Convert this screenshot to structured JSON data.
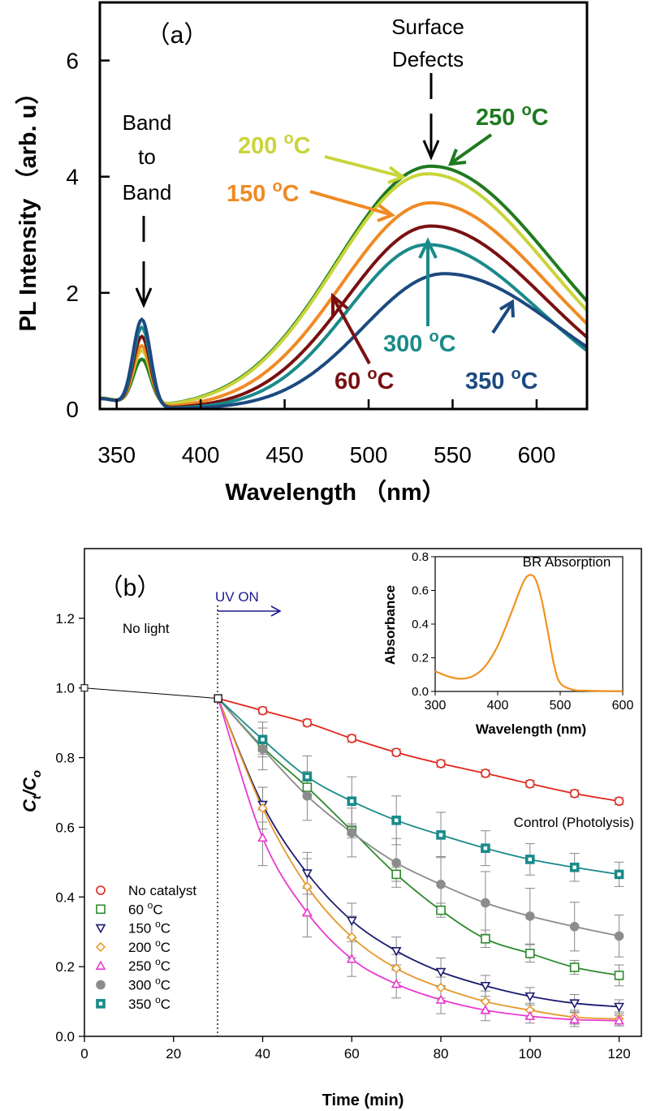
{
  "chart_data": [
    {
      "type": "line",
      "panel_label": "（a）",
      "xlabel": "Wavelength （nm）",
      "ylabel": "PL Intensity （arb. u）",
      "xlim": [
        340,
        630
      ],
      "ylim": [
        0,
        7
      ],
      "xticks": [
        350,
        400,
        450,
        500,
        550,
        600
      ],
      "yticks": [
        0,
        2,
        4,
        6
      ],
      "annotations": {
        "band_to_band": [
          "Band",
          "to",
          "Band"
        ],
        "surface_defects": [
          "Surface",
          "Defects"
        ]
      },
      "series": [
        {
          "name": "60 °C",
          "label_main": "60 ",
          "label_sup": "o",
          "label_end": "C",
          "color": "#7a1010",
          "uv_peak": 1.22,
          "vis_peak": 3.15,
          "vis_center": 537,
          "sigma_left": 50,
          "sigma_right": 68
        },
        {
          "name": "150 °C",
          "label_main": "150 ",
          "label_sup": "o",
          "label_end": "C",
          "color": "#f08a24",
          "uv_peak": 1.05,
          "vis_peak": 3.55,
          "vis_center": 537,
          "sigma_left": 53,
          "sigma_right": 70
        },
        {
          "name": "200 °C",
          "label_main": "200 ",
          "label_sup": "o",
          "label_end": "C",
          "color": "#c9d43a",
          "uv_peak": 0.95,
          "vis_peak": 4.05,
          "vis_center": 535,
          "sigma_left": 55,
          "sigma_right": 72
        },
        {
          "name": "250 °C",
          "label_main": "250 ",
          "label_sup": "o",
          "label_end": "C",
          "color": "#1f7a1f",
          "uv_peak": 0.8,
          "vis_peak": 4.18,
          "vis_center": 537,
          "sigma_left": 56,
          "sigma_right": 73
        },
        {
          "name": "300 °C",
          "label_main": "300 ",
          "label_sup": "o",
          "label_end": "C",
          "color": "#1a8a8a",
          "uv_peak": 1.38,
          "vis_peak": 2.83,
          "vis_center": 535,
          "sigma_left": 47,
          "sigma_right": 66
        },
        {
          "name": "350 °C",
          "label_main": "350 ",
          "label_sup": "o",
          "label_end": "C",
          "color": "#1c4a80",
          "uv_peak": 1.52,
          "vis_peak": 2.33,
          "vis_center": 545,
          "sigma_left": 48,
          "sigma_right": 68
        }
      ]
    },
    {
      "type": "scatter",
      "panel_label": "（b）",
      "xlabel": "Time (min)",
      "ylabel_main": "C",
      "ylabel_sub1": "t",
      "ylabel_slash": "/C",
      "ylabel_sub2": "o",
      "xlim": [
        0,
        125
      ],
      "ylim": [
        0,
        1.4
      ],
      "xticks": [
        0,
        20,
        40,
        60,
        80,
        100,
        120
      ],
      "yticks": [
        0.0,
        0.2,
        0.4,
        0.6,
        0.8,
        1.0,
        1.2
      ],
      "annotations": {
        "no_light": "No light",
        "uv_on": "UV ON",
        "control": "Control (Photolysis)"
      },
      "dark_points": {
        "x": [
          0,
          30
        ],
        "y": [
          1.0,
          0.97
        ]
      },
      "x": [
        30,
        40,
        50,
        60,
        70,
        80,
        90,
        100,
        110,
        120
      ],
      "series": [
        {
          "name": "No catalyst",
          "marker": "circle-open",
          "color": "#e0251b",
          "values": [
            0.97,
            0.935,
            0.9,
            0.855,
            0.815,
            0.783,
            0.755,
            0.725,
            0.697,
            0.675
          ],
          "errors": [
            0,
            0.01,
            0.01,
            0.01,
            0.01,
            0.01,
            0.01,
            0.01,
            0.01,
            0.01
          ]
        },
        {
          "name": "60 °C",
          "marker": "square-open",
          "color": "#2d8a2d",
          "values": [
            0.97,
            0.83,
            0.715,
            0.59,
            0.465,
            0.362,
            0.28,
            0.238,
            0.198,
            0.175
          ],
          "errors": [
            0,
            0.02,
            0.02,
            0.02,
            0.02,
            0.02,
            0.025,
            0.025,
            0.02,
            0.03
          ]
        },
        {
          "name": "150 °C",
          "marker": "triangle-down-open",
          "color": "#1a1a6e",
          "values": [
            0.97,
            0.665,
            0.468,
            0.332,
            0.245,
            0.185,
            0.145,
            0.115,
            0.095,
            0.085
          ],
          "errors": [
            0,
            0.05,
            0.06,
            0.05,
            0.04,
            0.04,
            0.03,
            0.025,
            0.025,
            0.02
          ]
        },
        {
          "name": "200 °C",
          "marker": "diamond-open",
          "color": "#e69a2e",
          "values": [
            0.97,
            0.655,
            0.43,
            0.285,
            0.195,
            0.14,
            0.1,
            0.075,
            0.055,
            0.05
          ],
          "errors": [
            0,
            0.06,
            0.08,
            0.06,
            0.04,
            0.03,
            0.03,
            0.02,
            0.02,
            0.02
          ]
        },
        {
          "name": "250 °C",
          "marker": "triangle-up-open",
          "color": "#e83ad0",
          "values": [
            0.97,
            0.57,
            0.355,
            0.222,
            0.15,
            0.105,
            0.075,
            0.058,
            0.048,
            0.045
          ],
          "errors": [
            0,
            0.08,
            0.07,
            0.05,
            0.04,
            0.04,
            0.03,
            0.02,
            0.02,
            0.015
          ]
        },
        {
          "name": "300 °C",
          "marker": "circle-filled",
          "color": "#8c8c8c",
          "values": [
            0.97,
            0.825,
            0.69,
            0.585,
            0.498,
            0.436,
            0.383,
            0.345,
            0.315,
            0.288
          ],
          "errors": [
            0,
            0.06,
            0.07,
            0.07,
            0.07,
            0.08,
            0.09,
            0.08,
            0.07,
            0.06
          ]
        },
        {
          "name": "350 °C",
          "marker": "square-filled",
          "color": "#1a8a8a",
          "values": [
            0.97,
            0.852,
            0.745,
            0.675,
            0.62,
            0.578,
            0.54,
            0.508,
            0.485,
            0.465
          ],
          "errors": [
            0,
            0.05,
            0.06,
            0.07,
            0.07,
            0.065,
            0.05,
            0.045,
            0.04,
            0.035
          ]
        }
      ],
      "legend_label_parts": [
        {
          "main": "No catalyst",
          "sup": "",
          "end": ""
        },
        {
          "main": "60 ",
          "sup": "o",
          "end": "C"
        },
        {
          "main": "150 ",
          "sup": "o",
          "end": "C"
        },
        {
          "main": "200 ",
          "sup": "o",
          "end": "C"
        },
        {
          "main": "250 ",
          "sup": "o",
          "end": "C"
        },
        {
          "main": "300 ",
          "sup": "o",
          "end": "C"
        },
        {
          "main": "350 ",
          "sup": "o",
          "end": "C"
        }
      ],
      "inset": {
        "type": "line",
        "title": "BR Absorption",
        "xlabel": "Wavelength (nm)",
        "ylabel": "Absorbance",
        "xlim": [
          300,
          600
        ],
        "ylim": [
          0,
          0.8
        ],
        "xticks": [
          300,
          400,
          500,
          600
        ],
        "yticks": [
          0.0,
          0.2,
          0.4,
          0.6,
          0.8
        ],
        "color": "#f0921e",
        "x": [
          300,
          320,
          340,
          360,
          380,
          400,
          420,
          440,
          450,
          460,
          470,
          480,
          490,
          500,
          520,
          540,
          560,
          580,
          600
        ],
        "values": [
          0.12,
          0.09,
          0.075,
          0.09,
          0.15,
          0.27,
          0.45,
          0.64,
          0.69,
          0.67,
          0.55,
          0.36,
          0.16,
          0.05,
          0.01,
          0.005,
          0.003,
          0.002,
          0.002
        ]
      }
    }
  ]
}
